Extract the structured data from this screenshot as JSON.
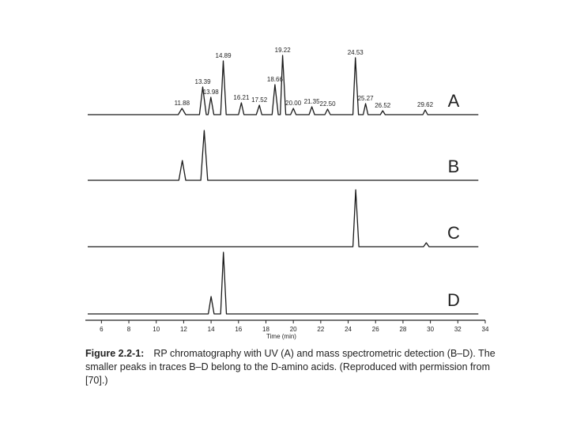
{
  "chart_data": {
    "type": "line",
    "xlabel": "Time (min)",
    "xlim": [
      5,
      34
    ],
    "xticks": [
      6,
      8,
      10,
      12,
      14,
      16,
      18,
      20,
      22,
      24,
      26,
      28,
      30,
      32,
      34
    ],
    "color": "#1a1a1a",
    "series": [
      {
        "name": "A",
        "x": [
          5,
          11.6,
          11.88,
          12.15,
          13.15,
          13.39,
          13.65,
          13.78,
          13.98,
          14.2,
          14.7,
          14.89,
          15.1,
          16.0,
          16.21,
          16.4,
          17.3,
          17.52,
          17.7,
          18.45,
          18.66,
          18.9,
          19.05,
          19.22,
          19.45,
          19.8,
          20.0,
          20.2,
          21.15,
          21.35,
          21.55,
          22.3,
          22.5,
          22.7,
          24.35,
          24.53,
          24.75,
          25.1,
          25.27,
          25.45,
          26.35,
          26.52,
          26.7,
          29.45,
          29.62,
          29.8,
          33.5
        ],
        "values": [
          0,
          0,
          8,
          0,
          0,
          35,
          0,
          0,
          22,
          0,
          0,
          68,
          0,
          0,
          15,
          0,
          0,
          12,
          0,
          0,
          38,
          0,
          0,
          75,
          0,
          0,
          8,
          0,
          0,
          10,
          0,
          0,
          7,
          0,
          0,
          72,
          0,
          0,
          14,
          0,
          0,
          5,
          0,
          0,
          6,
          0,
          0
        ],
        "peak_labels": [
          null,
          null,
          "11.88",
          null,
          null,
          "13.39",
          null,
          null,
          "13.98",
          null,
          null,
          "14.89",
          null,
          null,
          "16.21",
          null,
          null,
          "17.52",
          null,
          null,
          "18.66",
          null,
          null,
          "19.22",
          null,
          null,
          "20.00",
          null,
          null,
          "21.35",
          null,
          null,
          "22.50",
          null,
          null,
          "24.53",
          null,
          null,
          "25.27",
          null,
          null,
          "26.52",
          null,
          null,
          "29.62",
          null,
          null
        ]
      },
      {
        "name": "B",
        "x": [
          5,
          11.65,
          11.9,
          12.15,
          13.25,
          13.5,
          13.75,
          33.5
        ],
        "values": [
          0,
          0,
          25,
          0,
          0,
          63,
          0,
          0
        ]
      },
      {
        "name": "C",
        "x": [
          5,
          24.35,
          24.55,
          24.78,
          29.5,
          29.7,
          29.9,
          33.5
        ],
        "values": [
          0,
          0,
          72,
          0,
          0,
          5,
          0,
          0
        ]
      },
      {
        "name": "D",
        "x": [
          5,
          13.8,
          14.0,
          14.22,
          14.7,
          14.9,
          15.12,
          33.5
        ],
        "values": [
          0,
          0,
          22,
          0,
          0,
          78,
          0,
          0
        ]
      }
    ],
    "caption": {
      "label": "Figure 2.2-1:",
      "text": "RP chromatography with UV (A) and mass spectrometric detection (B–D). The smaller peaks in traces B–D belong to the D-amino acids. (Reproduced with permission from [70].)"
    }
  }
}
